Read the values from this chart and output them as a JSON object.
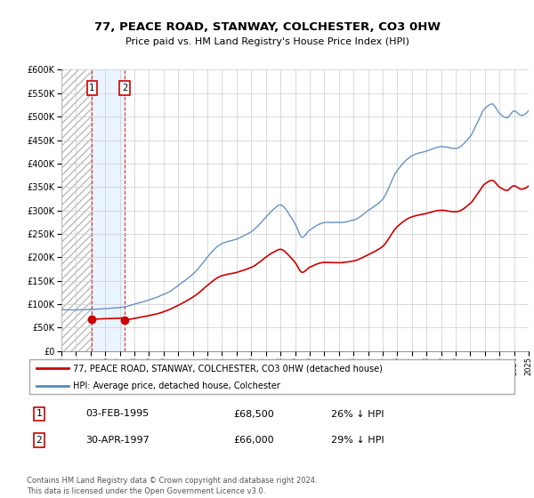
{
  "title": "77, PEACE ROAD, STANWAY, COLCHESTER, CO3 0HW",
  "subtitle": "Price paid vs. HM Land Registry's House Price Index (HPI)",
  "legend_line1": "77, PEACE ROAD, STANWAY, COLCHESTER, CO3 0HW (detached house)",
  "legend_line2": "HPI: Average price, detached house, Colchester",
  "table_row1": [
    "1",
    "03-FEB-1995",
    "£68,500",
    "26% ↓ HPI"
  ],
  "table_row2": [
    "2",
    "30-APR-1997",
    "£66,000",
    "29% ↓ HPI"
  ],
  "footer": "Contains HM Land Registry data © Crown copyright and database right 2024.\nThis data is licensed under the Open Government Licence v3.0.",
  "sale1_year": 1995.09,
  "sale1_price": 68500,
  "sale2_year": 1997.33,
  "sale2_price": 66000,
  "hpi_color": "#5588bb",
  "sale_color": "#cc0000",
  "shading_color": "#ddeeff",
  "ylim_min": 0,
  "ylim_max": 600000,
  "xlim_min": 1993,
  "xlim_max": 2025,
  "ytick_values": [
    0,
    50000,
    100000,
    150000,
    200000,
    250000,
    300000,
    350000,
    400000,
    450000,
    500000,
    550000,
    600000
  ]
}
